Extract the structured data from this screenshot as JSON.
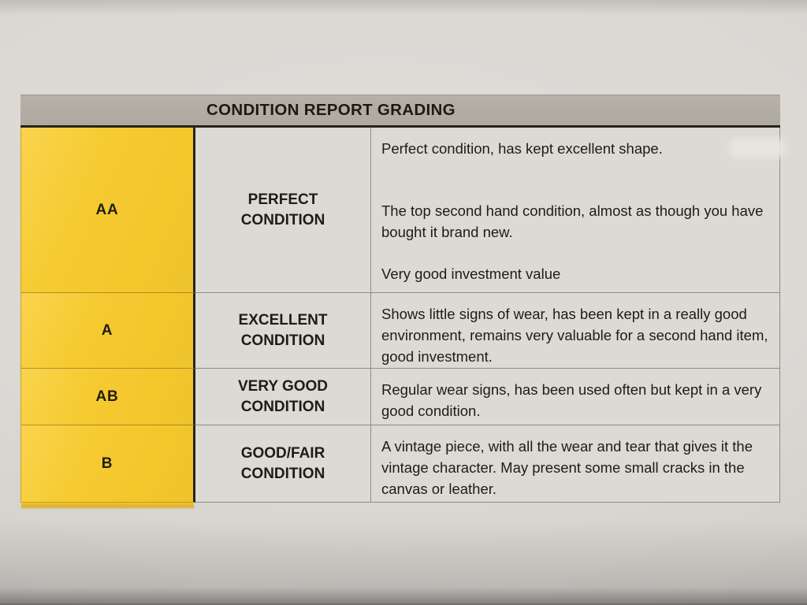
{
  "table": {
    "title": "CONDITION REPORT GRADING",
    "rows": [
      {
        "grade": "AA",
        "condition": "PERFECT CONDITION",
        "description": [
          "Perfect condition, has kept excellent shape.",
          "The top second hand condition, almost as though you have bought it brand new.",
          "Very good investment value"
        ]
      },
      {
        "grade": "A",
        "condition": "EXCELLENT CONDITION",
        "description": [
          "Shows little signs of wear, has been kept in a really good environment, remains very valuable for a second hand item, good investment."
        ]
      },
      {
        "grade": "AB",
        "condition": "VERY GOOD CONDITION",
        "description": [
          "Regular wear signs, has been used often but kept in a very good condition."
        ]
      },
      {
        "grade": "B",
        "condition": "GOOD/FAIR CONDITION",
        "description": [
          "A vintage piece, with all the wear and tear that gives it the vintage character. May present some small cracks in the canvas or leather."
        ]
      }
    ],
    "colors": {
      "grade_column_bg": "#F5C930",
      "header_bg": "#B2ADA3",
      "cell_bg": "#DCDAD5",
      "paper_bg": "#D8D6D2",
      "border_dark": "#26231E",
      "border_light": "#8F8C86",
      "text": "#1E1C18"
    }
  }
}
